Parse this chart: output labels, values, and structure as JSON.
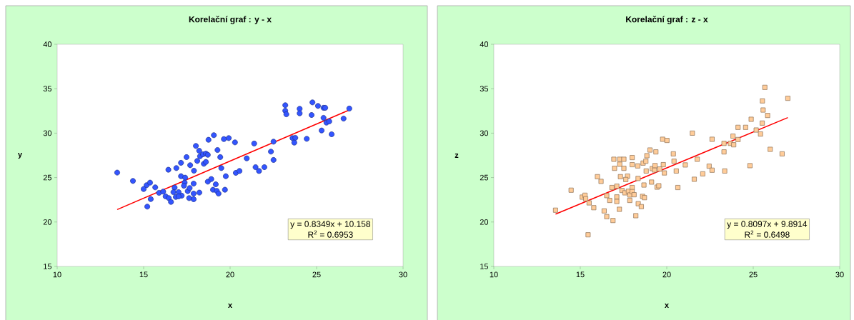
{
  "chart_data": [
    {
      "type": "scatter",
      "title": "Korelační graf : y - x",
      "xlabel": "x",
      "ylabel": "y",
      "xlim": [
        10,
        30
      ],
      "ylim": [
        15,
        40
      ],
      "xticks": [
        10,
        15,
        20,
        25,
        30
      ],
      "yticks": [
        15,
        20,
        25,
        30,
        35,
        40
      ],
      "annotations": [
        "y = 0.8349x + 10.158",
        "R$^{2}$ = 0.6953"
      ],
      "series": [
        {
          "color": "#3355ff",
          "marker": "circle",
          "x": [
            13.47,
            14.38,
            15.17,
            15.37,
            15.0,
            15.67,
            15.41,
            15.21,
            15.89,
            16.13,
            16.27,
            16.45,
            16.58,
            16.43,
            16.89,
            17.16,
            17.48,
            17.16,
            17.4,
            17.37,
            17.33,
            16.79,
            16.72,
            17.02,
            16.86,
            17.2,
            17.02,
            17.55,
            17.66,
            17.63,
            17.89,
            17.89,
            17.89,
            18.22,
            17.69,
            17.91,
            18.02,
            18.21,
            18.26,
            18.43,
            18.6,
            18.71,
            18.1,
            18.48,
            18.6,
            18.75,
            19.06,
            19.27,
            19.43,
            18.71,
            18.91,
            19.17,
            19.01,
            19.23,
            19.33,
            19.7,
            19.49,
            19.75,
            19.64,
            19.92,
            20.28,
            20.33,
            20.54,
            20.96,
            21.39,
            21.47,
            21.67,
            21.98,
            22.36,
            22.51,
            22.51,
            23.19,
            23.19,
            23.25,
            23.61,
            23.77,
            23.71,
            24.02,
            24.02,
            24.43,
            24.76,
            24.71,
            25.08,
            25.4,
            25.5,
            25.4,
            25.57,
            25.73,
            25.29,
            25.87,
            26.56,
            26.89
          ],
          "values": [
            25.56,
            24.62,
            24.14,
            24.43,
            23.71,
            23.9,
            22.58,
            21.73,
            23.28,
            23.42,
            22.88,
            22.69,
            22.26,
            25.88,
            26.07,
            26.66,
            27.3,
            25.15,
            24.99,
            24.43,
            24.08,
            23.87,
            23.36,
            23.36,
            22.82,
            22.96,
            22.88,
            23.47,
            23.82,
            22.69,
            22.56,
            23.2,
            24.32,
            23.31,
            26.39,
            25.77,
            28.56,
            28.02,
            27.4,
            27.62,
            27.7,
            27.56,
            26.87,
            26.55,
            26.76,
            29.25,
            29.77,
            28.1,
            27.3,
            24.54,
            24.83,
            24.24,
            23.63,
            23.5,
            23.2,
            23.63,
            26.07,
            25.15,
            29.33,
            29.44,
            28.96,
            25.53,
            25.74,
            27.16,
            28.83,
            26.17,
            25.74,
            26.17,
            27.92,
            29.04,
            26.98,
            33.14,
            32.52,
            32.12,
            29.44,
            29.47,
            28.93,
            32.74,
            32.23,
            29.36,
            33.46,
            32.04,
            33.06,
            32.85,
            32.85,
            31.72,
            31.18,
            31.32,
            30.3,
            29.87,
            31.64,
            32.77
          ]
        },
        {
          "type": "line",
          "color": "#ff0000",
          "x": [
            13.47,
            26.89
          ],
          "values": [
            21.4,
            32.61
          ]
        }
      ]
    },
    {
      "type": "scatter",
      "title": "Korelační graf : z - x",
      "xlabel": "x",
      "ylabel": "z",
      "xlim": [
        10,
        30
      ],
      "ylim": [
        15,
        40
      ],
      "xticks": [
        10,
        15,
        20,
        25,
        30
      ],
      "yticks": [
        15,
        20,
        25,
        30,
        35,
        40
      ],
      "annotations": [
        "y = 0.8097x + 9.8914",
        "R$^{2}$ = 0.6498"
      ],
      "series": [
        {
          "color": "#ffcc99",
          "marker": "square",
          "x": [
            13.57,
            14.47,
            15.45,
            15.11,
            15.27,
            15.31,
            15.51,
            15.78,
            15.99,
            16.2,
            16.38,
            16.53,
            16.89,
            16.53,
            16.7,
            16.83,
            17.11,
            17.11,
            17.11,
            17.26,
            16.94,
            17.28,
            17.52,
            16.98,
            17.28,
            17.52,
            17.32,
            17.73,
            17.63,
            17.41,
            17.58,
            17.78,
            17.86,
            18.0,
            18.0,
            18.11,
            17.86,
            18.35,
            18.53,
            18.21,
            18.6,
            18.71,
            18.0,
            18.0,
            18.32,
            18.34,
            18.68,
            18.63,
            18.79,
            18.85,
            19.03,
            19.37,
            18.81,
            19.16,
            19.29,
            19.32,
            19.12,
            19.44,
            19.54,
            19.59,
            19.8,
            19.86,
            19.76,
            20.01,
            20.38,
            20.42,
            20.55,
            20.64,
            21.07,
            21.48,
            21.59,
            21.76,
            22.08,
            22.45,
            22.62,
            22.62,
            23.35,
            23.31,
            23.31,
            23.68,
            23.83,
            23.87,
            24.12,
            24.12,
            24.56,
            24.88,
            24.81,
            25.17,
            25.42,
            25.52,
            25.53,
            25.57,
            25.67,
            25.83,
            25.98,
            26.67,
            27.0
          ],
          "values": [
            21.33,
            23.58,
            18.56,
            22.8,
            23.01,
            22.61,
            22.15,
            21.61,
            25.1,
            24.57,
            21.25,
            20.6,
            20.17,
            22.97,
            22.43,
            23.88,
            24.03,
            22.82,
            22.31,
            21.43,
            27.06,
            27.06,
            27.06,
            26.04,
            26.5,
            26.04,
            25.1,
            25.16,
            24.78,
            23.55,
            23.28,
            23.46,
            23.04,
            23.88,
            23.42,
            23.07,
            22.43,
            22.06,
            21.73,
            20.71,
            22.88,
            22.74,
            27.25,
            26.45,
            26.31,
            24.9,
            24.16,
            26.63,
            26.84,
            27.46,
            28.1,
            27.89,
            25.74,
            26.01,
            25.85,
            26.35,
            24.49,
            23.92,
            24.08,
            25.96,
            26.45,
            25.52,
            29.31,
            29.18,
            27.67,
            26.84,
            25.74,
            23.88,
            26.42,
            30.0,
            24.81,
            27.06,
            25.42,
            26.28,
            25.83,
            29.31,
            25.74,
            28.85,
            27.89,
            28.85,
            29.66,
            28.69,
            29.28,
            30.65,
            30.65,
            31.56,
            26.34,
            30.35,
            29.9,
            31.13,
            33.63,
            32.6,
            35.15,
            31.99,
            28.18,
            27.67,
            33.92
          ]
        },
        {
          "type": "line",
          "color": "#ff0000",
          "x": [
            13.57,
            27.0
          ],
          "values": [
            20.88,
            31.75
          ]
        }
      ]
    }
  ]
}
